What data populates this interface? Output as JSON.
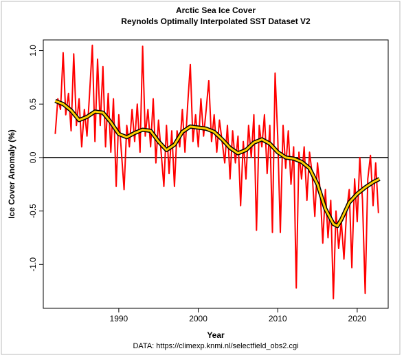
{
  "chart_data": {
    "type": "line",
    "title": "Arctic Sea Ice Cover",
    "subtitle": "Reynolds Optimally Interpolated SST Dataset V2",
    "xlabel": "Year",
    "ylabel": "Ice Cover Anomaly (%)",
    "source": "DATA: https://climexp.knmi.nl/selectfield_obs2.cgi",
    "xlim": [
      1980.5,
      2023.9
    ],
    "xticks": [
      1990,
      2000,
      2010,
      2020
    ],
    "ylim": [
      -1.41,
      1.1
    ],
    "yticks": [
      {
        "value": -1,
        "label": "-1.0"
      },
      -0.5,
      {
        "value": 0,
        "label": "0.0"
      },
      0.5,
      {
        "value": 1,
        "label": "1.0"
      }
    ],
    "zero_line": true,
    "series": [
      {
        "color": "#ff0000",
        "x": [
          1982,
          1982.33,
          1982.67,
          1983,
          1983.33,
          1983.67,
          1984,
          1984.33,
          1984.67,
          1985,
          1985.33,
          1985.67,
          1986,
          1986.33,
          1986.67,
          1987,
          1987.33,
          1987.67,
          1988,
          1988.33,
          1988.67,
          1989,
          1989.33,
          1989.67,
          1990,
          1990.33,
          1990.67,
          1991,
          1991.33,
          1991.67,
          1992,
          1992.33,
          1992.67,
          1993,
          1993.33,
          1993.67,
          1994,
          1994.33,
          1994.67,
          1995,
          1995.33,
          1995.67,
          1996,
          1996.33,
          1996.67,
          1997,
          1997.33,
          1997.67,
          1998,
          1998.33,
          1998.67,
          1999,
          1999.33,
          1999.67,
          2000,
          2000.33,
          2000.67,
          2001,
          2001.33,
          2001.67,
          2002,
          2002.33,
          2002.67,
          2003,
          2003.33,
          2003.67,
          2004,
          2004.33,
          2004.67,
          2005,
          2005.33,
          2005.67,
          2006,
          2006.33,
          2006.67,
          2007,
          2007.33,
          2007.67,
          2008,
          2008.33,
          2008.67,
          2009,
          2009.33,
          2009.67,
          2010,
          2010.33,
          2010.67,
          2011,
          2011.33,
          2011.67,
          2012,
          2012.33,
          2012.67,
          2013,
          2013.33,
          2013.67,
          2014,
          2014.33,
          2014.67,
          2015,
          2015.33,
          2015.67,
          2016,
          2016.33,
          2016.67,
          2017,
          2017.33,
          2017.67,
          2018,
          2018.33,
          2018.67,
          2019,
          2019.33,
          2019.67,
          2020,
          2020.33,
          2020.67,
          2021,
          2021.33,
          2021.67,
          2022,
          2022.33,
          2022.67
        ],
        "values": [
          0.22,
          0.55,
          0.45,
          0.98,
          0.4,
          0.6,
          0.25,
          0.97,
          0.3,
          0.55,
          0.1,
          0.45,
          0.2,
          0.6,
          1.05,
          0.15,
          0.92,
          0.3,
          0.85,
          0.1,
          0.6,
          0.05,
          0.55,
          -0.27,
          0.4,
          0.05,
          -0.3,
          0.3,
          0.1,
          0.45,
          0.15,
          0.5,
          0.05,
          1.04,
          0.2,
          0.45,
          0.1,
          0.55,
          -0.05,
          0.35,
          0.05,
          -0.27,
          0.3,
          -0.15,
          0.25,
          -0.27,
          0.25,
          0.1,
          0.45,
          0.05,
          0.5,
          0.87,
          0.15,
          0.4,
          0.1,
          0.55,
          0.2,
          0.45,
          0.72,
          0.15,
          0.4,
          0.05,
          0.35,
          0.15,
          -0.05,
          0.3,
          -0.2,
          0.25,
          -0.05,
          0.2,
          -0.45,
          0.15,
          -0.2,
          0.3,
          0,
          0.4,
          -0.68,
          0.3,
          0.1,
          0.4,
          -0.15,
          0.3,
          -0.7,
          0.79,
          0.2,
          -0.7,
          0.3,
          -0.1,
          0.25,
          -0.25,
          0.1,
          -1.22,
          0.05,
          -0.2,
          0.1,
          -0.4,
          0.05,
          -0.15,
          -0.55,
          -0.05,
          -0.3,
          -0.8,
          -0.3,
          -0.75,
          -0.4,
          -1.32,
          -0.5,
          -0.85,
          -0.6,
          -0.95,
          -0.5,
          -0.3,
          -1.03,
          -0.2,
          -0.6,
          0,
          -0.4,
          -1.27,
          -0.2,
          0.02,
          -0.45,
          -0.05,
          -0.52
        ]
      },
      {
        "color": "#ffd000",
        "x": [
          1982,
          1983,
          1984,
          1985,
          1986,
          1987,
          1988,
          1989,
          1990,
          1991,
          1992,
          1993,
          1994,
          1995,
          1996,
          1997,
          1998,
          1999,
          2000,
          2001,
          2002,
          2003,
          2004,
          2005,
          2006,
          2007,
          2008,
          2009,
          2010,
          2011,
          2012,
          2013,
          2014,
          2015,
          2016,
          2017,
          2017.5,
          2018,
          2019,
          2020,
          2021,
          2022,
          2022.8
        ],
        "values": [
          0.53,
          0.5,
          0.44,
          0.35,
          0.38,
          0.43,
          0.42,
          0.33,
          0.22,
          0.19,
          0.23,
          0.26,
          0.25,
          0.15,
          0.07,
          0.12,
          0.24,
          0.29,
          0.28,
          0.27,
          0.24,
          0.17,
          0.09,
          0.04,
          0.07,
          0.14,
          0.17,
          0.13,
          0.05,
          0,
          -0.01,
          -0.04,
          -0.1,
          -0.25,
          -0.48,
          -0.62,
          -0.64,
          -0.58,
          -0.42,
          -0.34,
          -0.28,
          -0.23,
          -0.2
        ]
      }
    ]
  }
}
